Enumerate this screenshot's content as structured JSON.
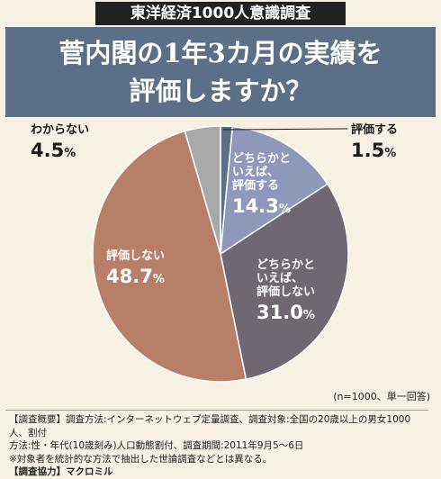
{
  "header": {
    "badge": "東洋経済1000人意識調査",
    "title_line1": "菅内閣の1年3カ月の実績を",
    "title_line2": "評価しますか？"
  },
  "chart_data": {
    "type": "pie",
    "slices": [
      {
        "label_lines": [
          "評価する"
        ],
        "value": 1.5,
        "color": "#5b6f86"
      },
      {
        "label_lines": [
          "どちらかと",
          "いえば、",
          "評価する"
        ],
        "value": 14.3,
        "color": "#8e99b9"
      },
      {
        "label_lines": [
          "どちらかと",
          "いえば、",
          "評価しない"
        ],
        "value": 31.0,
        "color": "#6f6873"
      },
      {
        "label_lines": [
          "評価しない"
        ],
        "value": 48.7,
        "color": "#b77f68"
      },
      {
        "label_lines": [
          "わからない"
        ],
        "value": 4.5,
        "color": "#a8a8a8"
      }
    ],
    "unit": "%",
    "sample_note": "(n=1000、単一回答)"
  },
  "footer": {
    "line1": "【調査概要】調査方法:インターネットウェブ定量調査、調査対象:全国の20歳以上の男女1000人、割付",
    "line2": "方法:性・年代(10歳刻み)人口動態割付、調査期間:2011年9月5～6日",
    "line3": "※対象者を統計的な方法で抽出した世論調査などとは異なる。",
    "line4": "【調査協力】マクロミル"
  }
}
